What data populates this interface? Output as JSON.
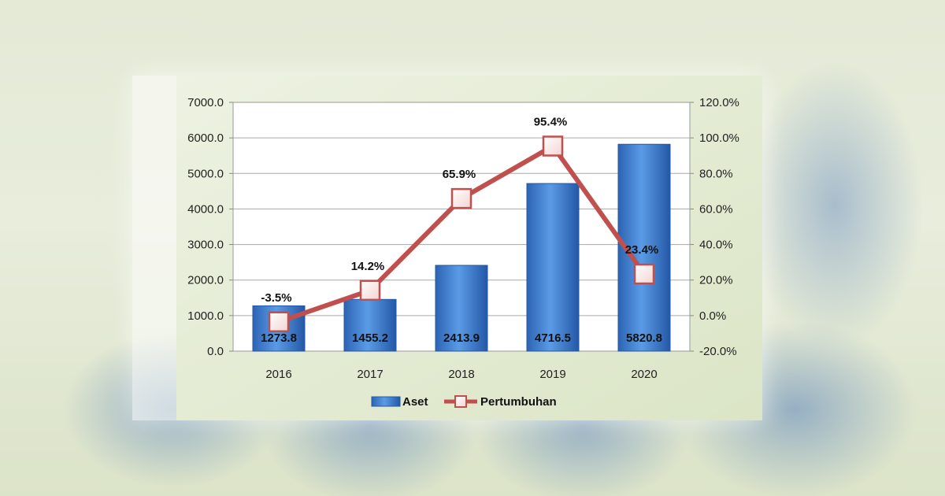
{
  "chart_data": {
    "type": "bar",
    "categories": [
      "2016",
      "2017",
      "2018",
      "2019",
      "2020"
    ],
    "series": [
      {
        "name": "Aset",
        "type": "bar",
        "axis": "left",
        "values": [
          1273.8,
          1455.2,
          2413.9,
          4716.5,
          5820.8
        ],
        "labels": [
          "1273.8",
          "1455.2",
          "2413.9",
          "4716.5",
          "5820.8"
        ],
        "color": "#3f7fcf"
      },
      {
        "name": "Pertumbuhan",
        "type": "line",
        "axis": "right",
        "values": [
          -3.5,
          14.2,
          65.9,
          95.4,
          23.4
        ],
        "labels": [
          "-3.5%",
          "14.2%",
          "65.9%",
          "95.4%",
          "23.4%"
        ],
        "color": "#c0504d"
      }
    ],
    "y_left": {
      "range": [
        0,
        7000
      ],
      "ticks": [
        "0.0",
        "1000.0",
        "2000.0",
        "3000.0",
        "4000.0",
        "5000.0",
        "6000.0",
        "7000.0"
      ]
    },
    "y_right": {
      "range": [
        -20,
        120
      ],
      "ticks": [
        "-20.0%",
        "0.0%",
        "20.0%",
        "40.0%",
        "60.0%",
        "80.0%",
        "100.0%",
        "120.0%"
      ]
    },
    "grid": true,
    "legend": "bottom",
    "title": "",
    "xlabel": "",
    "ylabel": ""
  }
}
